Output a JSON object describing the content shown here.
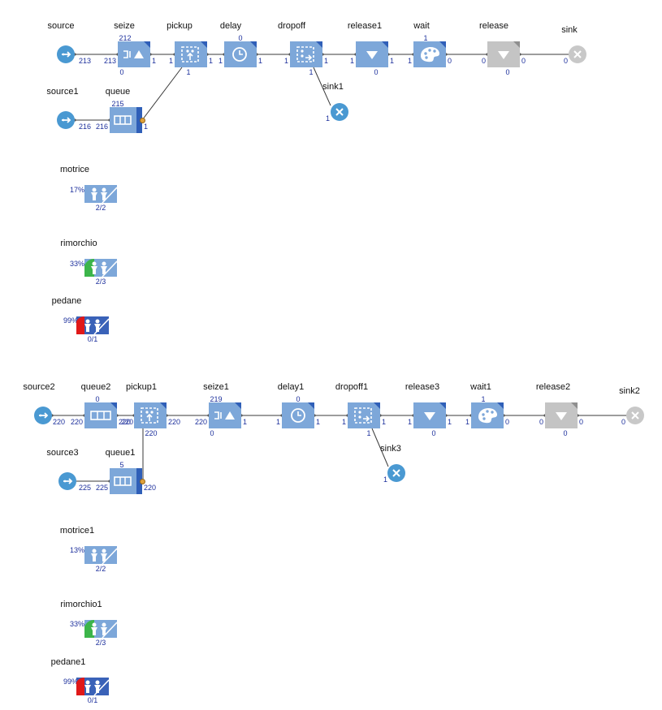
{
  "flowchart_1": {
    "source": {
      "label": "source",
      "out": "213"
    },
    "seize": {
      "label": "seize",
      "top": "212",
      "in": "213",
      "bottom": "0",
      "out": "1"
    },
    "pickup": {
      "label": "pickup",
      "in": "1",
      "bottom": "1",
      "out": "1"
    },
    "delay": {
      "label": "delay",
      "top": "0",
      "in": "1",
      "out": "1"
    },
    "dropoff": {
      "label": "dropoff",
      "in": "1",
      "bottom": "1",
      "out": "1"
    },
    "release1": {
      "label": "release1",
      "in": "1",
      "bottom": "0",
      "out": "1"
    },
    "wait": {
      "label": "wait",
      "top": "1",
      "in": "1",
      "out": "0"
    },
    "release": {
      "label": "release",
      "in": "0",
      "bottom": "0",
      "out": "0"
    },
    "sink": {
      "label": "sink",
      "in": "0"
    },
    "source1": {
      "label": "source1",
      "out": "216"
    },
    "queue": {
      "label": "queue",
      "top": "215",
      "in": "216",
      "out": "1"
    },
    "sink1": {
      "label": "sink1",
      "in": "1"
    },
    "resources": [
      {
        "label": "motrice",
        "percent": "17%",
        "count": "2/2"
      },
      {
        "label": "rimorchio",
        "percent": "33%",
        "count": "2/3"
      },
      {
        "label": "pedane",
        "percent": "99%",
        "count": "0/1"
      }
    ]
  },
  "flowchart_2": {
    "source2": {
      "label": "source2",
      "out": "220"
    },
    "queue2": {
      "label": "queue2",
      "top": "0",
      "in": "220",
      "out": "220"
    },
    "pickup1": {
      "label": "pickup1",
      "in": "220",
      "bottom": "220",
      "out": "220"
    },
    "seize1": {
      "label": "seize1",
      "top": "219",
      "in": "220",
      "bottom": "0",
      "out": "1"
    },
    "delay1": {
      "label": "delay1",
      "top": "0",
      "in": "1",
      "out": "1"
    },
    "dropoff1": {
      "label": "dropoff1",
      "in": "1",
      "bottom": "1",
      "out": "1"
    },
    "release3": {
      "label": "release3",
      "in": "1",
      "bottom": "0",
      "out": "1"
    },
    "wait1": {
      "label": "wait1",
      "top": "1",
      "in": "1",
      "out": "0"
    },
    "release2": {
      "label": "release2",
      "in": "0",
      "bottom": "0",
      "out": "0"
    },
    "sink2": {
      "label": "sink2",
      "in": "0"
    },
    "source3": {
      "label": "source3",
      "out": "225"
    },
    "queue1": {
      "label": "queue1",
      "top": "5",
      "in": "225",
      "out": "220"
    },
    "sink3": {
      "label": "sink3",
      "in": "1"
    },
    "resources": [
      {
        "label": "motrice1",
        "percent": "13%",
        "count": "2/2"
      },
      {
        "label": "rimorchio1",
        "percent": "33%",
        "count": "2/3"
      },
      {
        "label": "pedane1",
        "percent": "99%",
        "count": "0/1"
      }
    ]
  },
  "colors": {
    "block": "#7da7d9",
    "block_accent": "#2f5fb8",
    "disabled": "#c4c4c4",
    "source_sink": "#4a99d2",
    "counter_text": "#1c2f9c",
    "util_green": "#3cb54a",
    "util_red": "#e01818"
  },
  "icons": {
    "source": "source-arrow-icon",
    "sink": "sink-x-icon",
    "seize": "seize-icon",
    "pickup": "pickup-icon",
    "delay": "clock-icon",
    "dropoff": "dropoff-icon",
    "release": "release-triangle-icon",
    "wait": "wait-palette-icon",
    "queue": "queue-icon",
    "resource_pool": "resource-pool-people-icon"
  }
}
